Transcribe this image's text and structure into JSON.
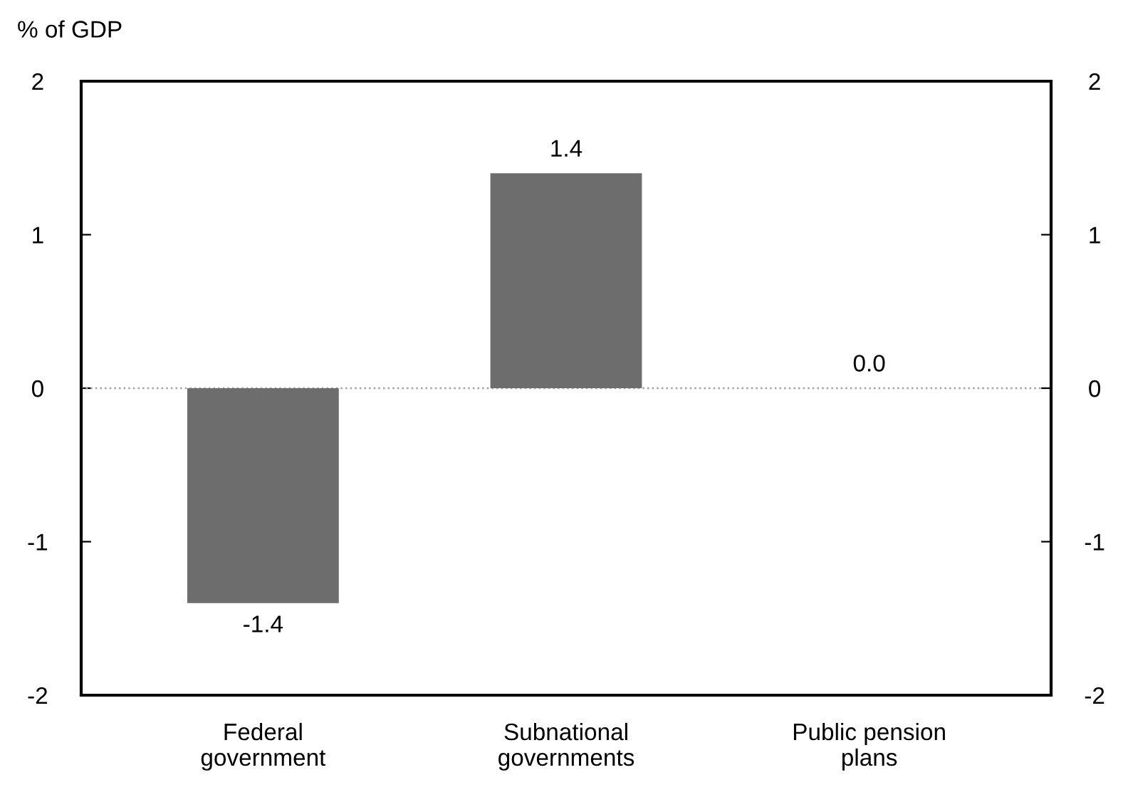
{
  "chart_data": {
    "type": "bar",
    "ylabel": "% of GDP",
    "categories": [
      "Federal\ngovernment",
      "Subnational\ngovernments",
      "Public pension\nplans"
    ],
    "values": [
      -1.4,
      1.4,
      0.0
    ],
    "color": "#6d6d6d",
    "value_labels": [
      "-1.4",
      "1.4",
      "0.0"
    ],
    "ylim": [
      -2,
      2
    ],
    "yticks": [
      -2,
      -1,
      0,
      1,
      2
    ],
    "y2lim": [
      -2,
      2
    ],
    "y2ticks": [
      -2,
      -1,
      0,
      1,
      2
    ],
    "ref_lines": [
      {
        "axis": "y",
        "value": 0,
        "color": "#a0a0a0",
        "line_style": "dotted"
      }
    ],
    "tick_labels": true
  }
}
